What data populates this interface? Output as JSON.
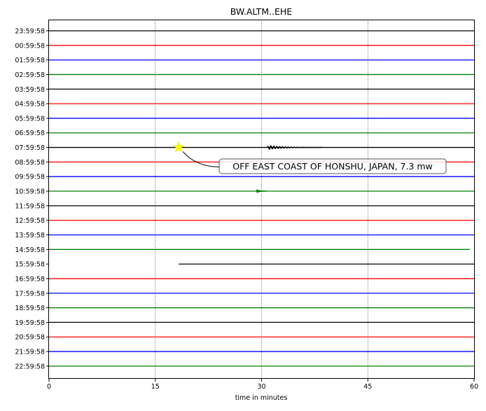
{
  "chart_data": {
    "type": "line",
    "title": "BW.ALTM..EHE",
    "xlabel": "time in minutes",
    "ylabel": "",
    "xlim": [
      0,
      60
    ],
    "x_ticks": [
      "0",
      "15",
      "30",
      "45",
      "60"
    ],
    "vertical_gridlines_at": [
      15,
      30,
      45
    ],
    "row_labels": [
      "23:59:58",
      "00:59:58",
      "01:59:58",
      "02:59:58",
      "03:59:58",
      "04:59:58",
      "05:59:58",
      "06:59:58",
      "07:59:58",
      "08:59:58",
      "09:59:58",
      "10:59:58",
      "11:59:58",
      "12:59:58",
      "13:59:58",
      "14:59:58",
      "15:59:58",
      "16:59:58",
      "17:59:58",
      "18:59:58",
      "19:59:58",
      "20:59:58",
      "21:59:58",
      "22:59:58"
    ],
    "row_colors": [
      "#000000",
      "#ff0000",
      "#0000ff",
      "#008000"
    ],
    "traces": [
      {
        "row": 0,
        "start": 0,
        "end": 60
      },
      {
        "row": 1,
        "start": 0,
        "end": 60
      },
      {
        "row": 2,
        "start": 0,
        "end": 60
      },
      {
        "row": 3,
        "start": 0,
        "end": 60
      },
      {
        "row": 4,
        "start": 0,
        "end": 60
      },
      {
        "row": 5,
        "start": 0,
        "end": 60
      },
      {
        "row": 6,
        "start": 0,
        "end": 60
      },
      {
        "row": 7,
        "start": 0,
        "end": 60
      },
      {
        "row": 8,
        "start": 0,
        "end": 60
      },
      {
        "row": 9,
        "start": 0,
        "end": 60
      },
      {
        "row": 10,
        "start": 0,
        "end": 60
      },
      {
        "row": 11,
        "start": 0,
        "end": 60
      },
      {
        "row": 12,
        "start": 0,
        "end": 60
      },
      {
        "row": 13,
        "start": 0,
        "end": 60
      },
      {
        "row": 14,
        "start": 0,
        "end": 60
      },
      {
        "row": 15,
        "start": 0,
        "end": 59.4
      },
      {
        "row": 16,
        "start": 18.3,
        "end": 60
      },
      {
        "row": 17,
        "start": 0,
        "end": 60
      },
      {
        "row": 18,
        "start": 0,
        "end": 60
      },
      {
        "row": 19,
        "start": 0,
        "end": 60
      },
      {
        "row": 20,
        "start": 0,
        "end": 60
      },
      {
        "row": 21,
        "start": 0,
        "end": 60
      },
      {
        "row": 22,
        "start": 0,
        "end": 60
      },
      {
        "row": 23,
        "start": 0,
        "end": 60
      }
    ],
    "signals": [
      {
        "row": 8,
        "start": 30.8,
        "end": 38.5,
        "amplitude": 3
      },
      {
        "row": 11,
        "start": 29.3,
        "end": 30.7,
        "amplitude": 1.5
      }
    ],
    "event": {
      "row": 8,
      "x": 18.3,
      "marker_color": "#ffff00",
      "label": "OFF EAST COAST OF HONSHU, JAPAN, 7.3 mw"
    }
  }
}
